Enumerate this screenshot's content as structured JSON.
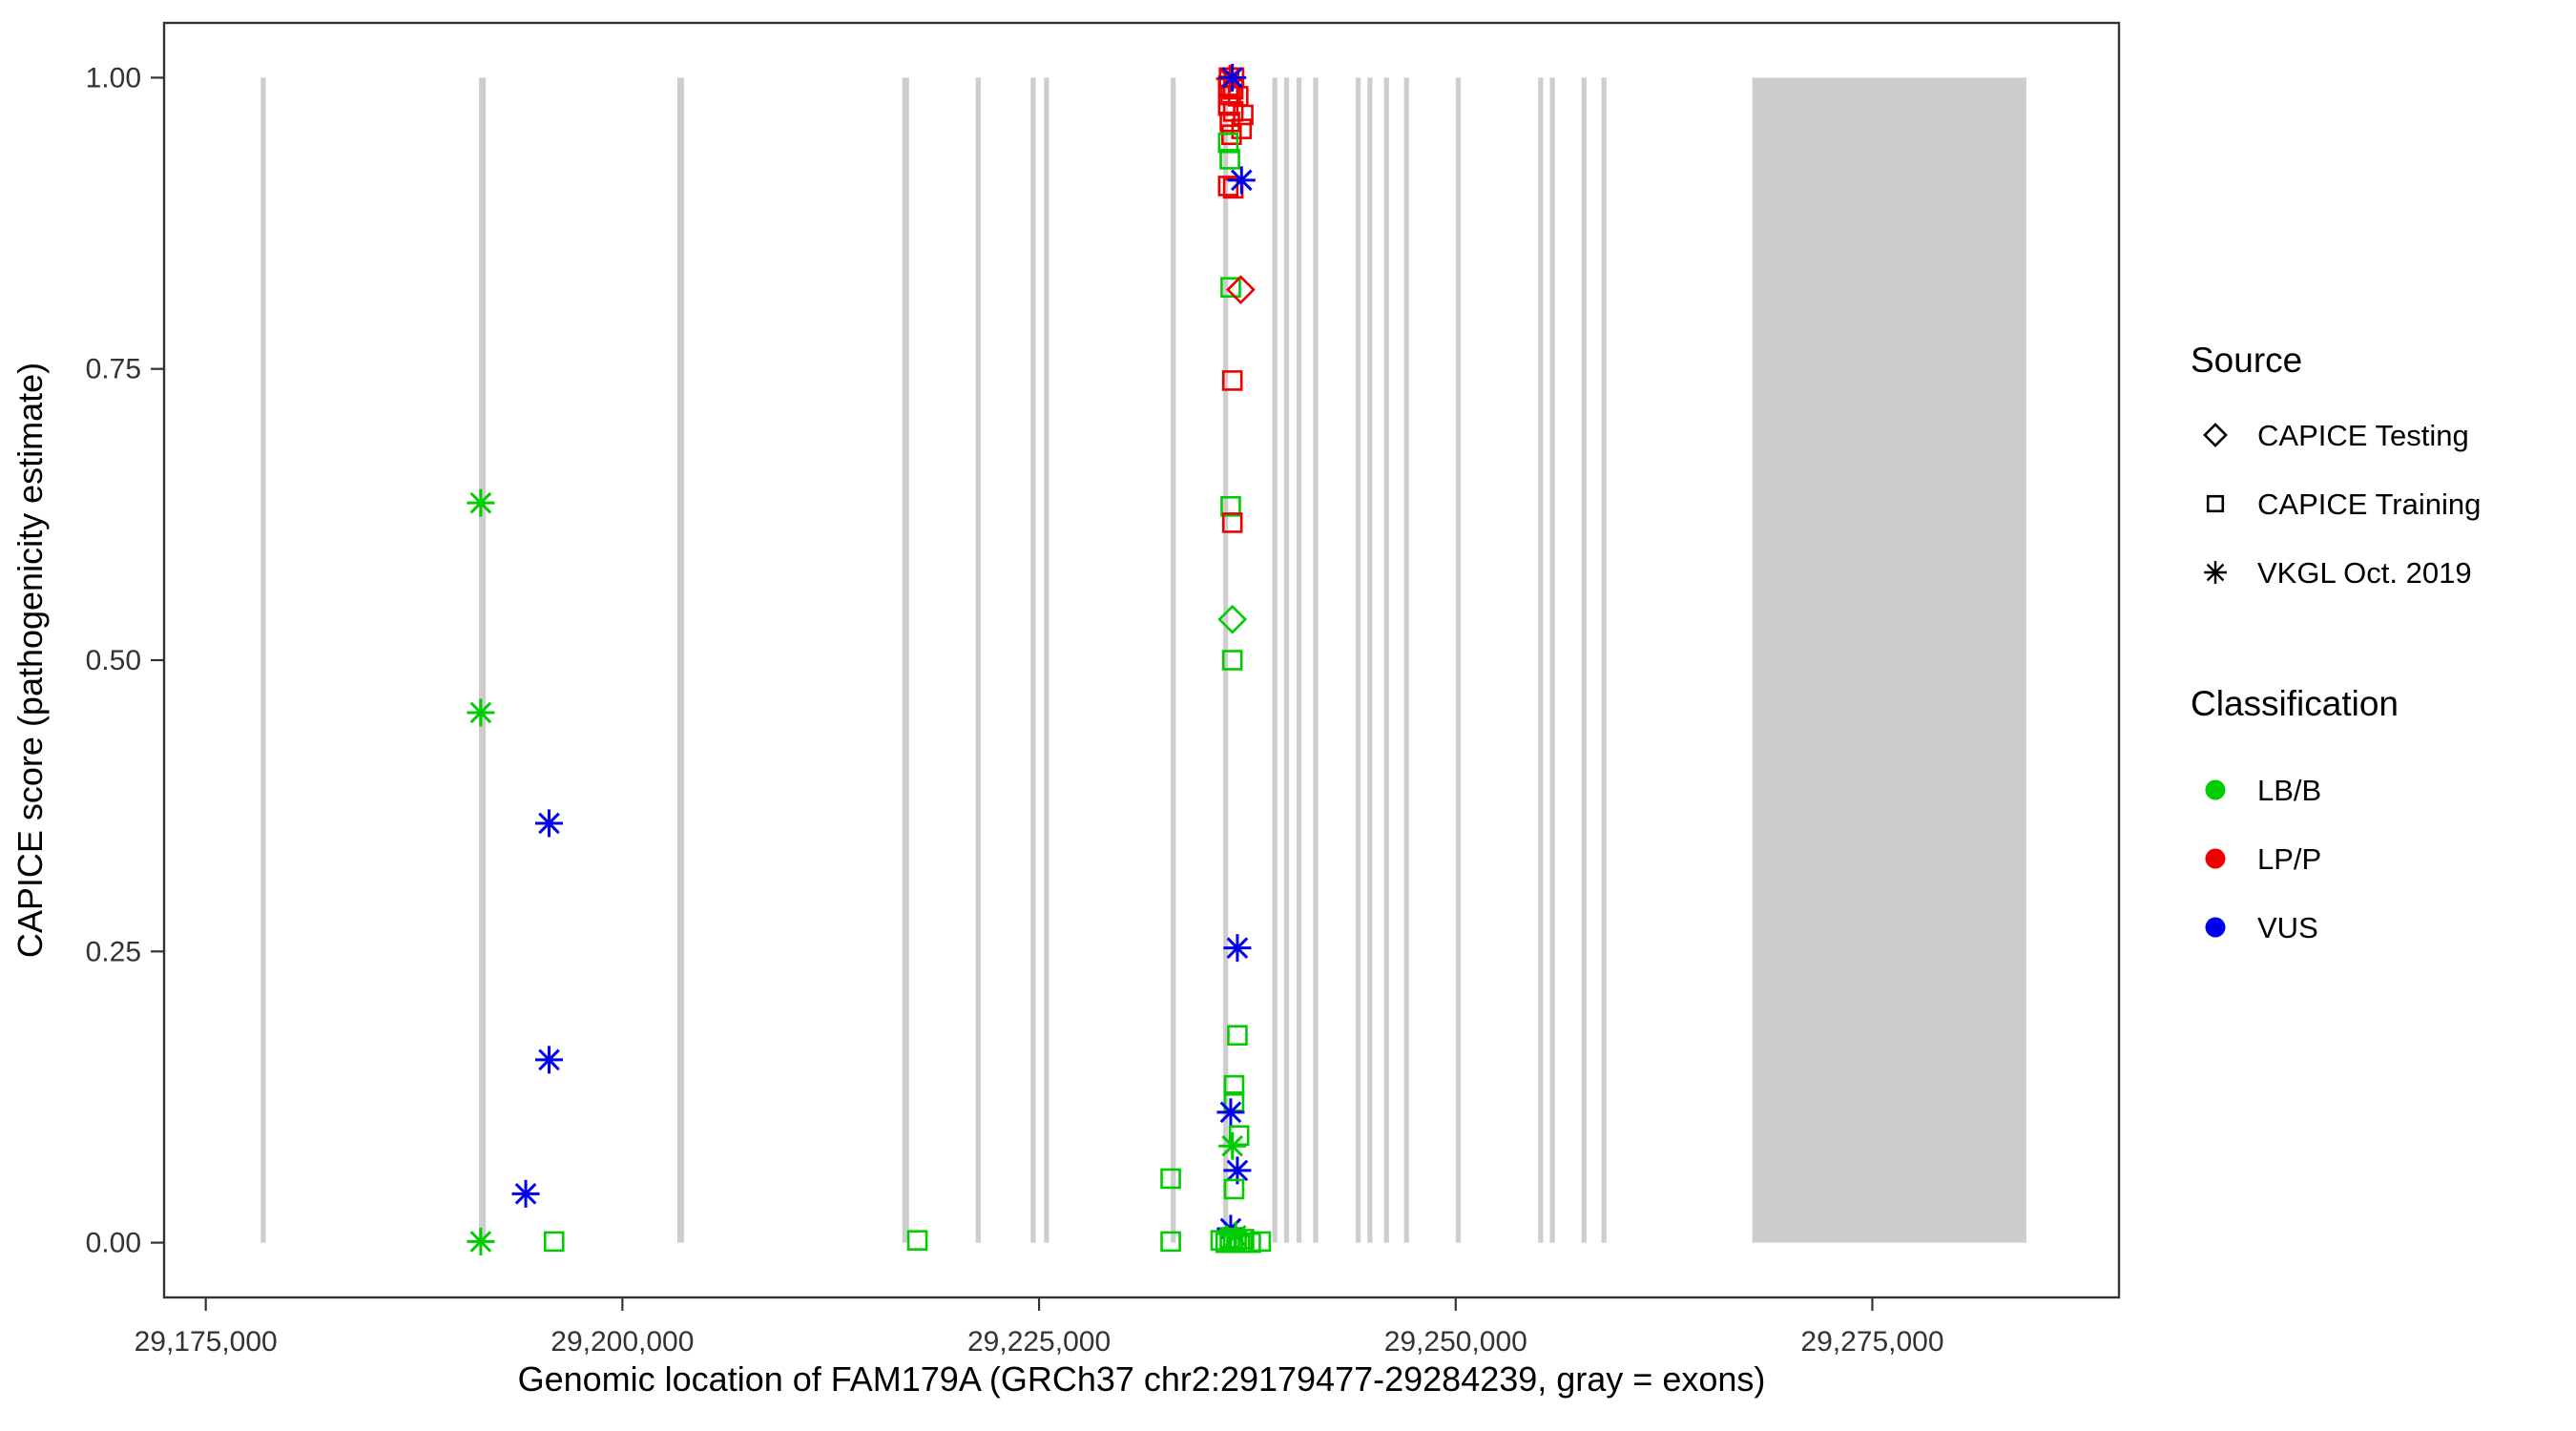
{
  "chart_data": {
    "type": "scatter",
    "title": "",
    "xlabel": "Genomic location of FAM179A (GRCh37 chr2:29179477-29284239, gray = exons)",
    "ylabel": "CAPICE score (pathogenicity estimate)",
    "xlim": [
      29172500,
      29289800
    ],
    "ylim": [
      -0.047,
      1.047
    ],
    "x_ticks": [
      {
        "value": 29175000,
        "label": "29,175,000"
      },
      {
        "value": 29200000,
        "label": "29,200,000"
      },
      {
        "value": 29225000,
        "label": "29,225,000"
      },
      {
        "value": 29250000,
        "label": "29,250,000"
      },
      {
        "value": 29275000,
        "label": "29,275,000"
      }
    ],
    "y_ticks": [
      {
        "value": 0.0,
        "label": "0.00"
      },
      {
        "value": 0.25,
        "label": "0.25"
      },
      {
        "value": 0.5,
        "label": "0.50"
      },
      {
        "value": 0.75,
        "label": "0.75"
      },
      {
        "value": 1.0,
        "label": "1.00"
      }
    ],
    "grid": false,
    "exon_color": "#cdcdcd",
    "exons": [
      [
        29178300,
        29178600
      ],
      [
        29191400,
        29191800
      ],
      [
        29203300,
        29203700
      ],
      [
        29216800,
        29217200
      ],
      [
        29221200,
        29221500
      ],
      [
        29224500,
        29224800
      ],
      [
        29225300,
        29225600
      ],
      [
        29232900,
        29233200
      ],
      [
        29236050,
        29236350
      ],
      [
        29239000,
        29239300
      ],
      [
        29239700,
        29240000
      ],
      [
        29240450,
        29240750
      ],
      [
        29241450,
        29241750
      ],
      [
        29244000,
        29244300
      ],
      [
        29244700,
        29245000
      ],
      [
        29245700,
        29246000
      ],
      [
        29246900,
        29247200
      ],
      [
        29250000,
        29250300
      ],
      [
        29254950,
        29255250
      ],
      [
        29255650,
        29255950
      ],
      [
        29257550,
        29257850
      ],
      [
        29258750,
        29259050
      ],
      [
        29267800,
        29284239
      ]
    ],
    "source_shapes": {
      "testing": "diamond",
      "training": "square",
      "vkgl": "asterisk"
    },
    "classification_colors": {
      "LB/B": "#00cc00",
      "LP/P": "#ee0000",
      "VUS": "#0000ee"
    },
    "legend": {
      "source_title": "Source",
      "source_items": [
        {
          "label": "CAPICE Testing",
          "shape": "diamond"
        },
        {
          "label": "CAPICE Training",
          "shape": "square"
        },
        {
          "label": "VKGL Oct. 2019",
          "shape": "asterisk"
        }
      ],
      "classification_title": "Classification",
      "classification_items": [
        {
          "label": "LB/B",
          "color": "#00cc00"
        },
        {
          "label": "LP/P",
          "color": "#ee0000"
        },
        {
          "label": "VUS",
          "color": "#0000ee"
        }
      ]
    },
    "points": [
      {
        "x": 29191500,
        "y": 0.635,
        "source": "vkgl",
        "class": "LB/B"
      },
      {
        "x": 29191500,
        "y": 0.455,
        "source": "vkgl",
        "class": "LB/B"
      },
      {
        "x": 29195600,
        "y": 0.36,
        "source": "vkgl",
        "class": "VUS"
      },
      {
        "x": 29195600,
        "y": 0.157,
        "source": "vkgl",
        "class": "VUS"
      },
      {
        "x": 29194200,
        "y": 0.042,
        "source": "vkgl",
        "class": "VUS"
      },
      {
        "x": 29191500,
        "y": 0.001,
        "source": "vkgl",
        "class": "LB/B"
      },
      {
        "x": 29195900,
        "y": 0.001,
        "source": "training",
        "class": "LB/B"
      },
      {
        "x": 29217700,
        "y": 0.002,
        "source": "training",
        "class": "LB/B"
      },
      {
        "x": 29232900,
        "y": 0.055,
        "source": "training",
        "class": "LB/B"
      },
      {
        "x": 29232900,
        "y": 0.001,
        "source": "training",
        "class": "LB/B"
      },
      {
        "x": 29236500,
        "y": 0.82,
        "source": "training",
        "class": "LB/B"
      },
      {
        "x": 29237100,
        "y": 0.818,
        "source": "testing",
        "class": "LP/P"
      },
      {
        "x": 29236600,
        "y": 0.74,
        "source": "training",
        "class": "LP/P"
      },
      {
        "x": 29236500,
        "y": 0.632,
        "source": "training",
        "class": "LB/B"
      },
      {
        "x": 29236600,
        "y": 0.618,
        "source": "training",
        "class": "LP/P"
      },
      {
        "x": 29236600,
        "y": 0.535,
        "source": "testing",
        "class": "LB/B"
      },
      {
        "x": 29236600,
        "y": 0.5,
        "source": "training",
        "class": "LB/B"
      },
      {
        "x": 29236900,
        "y": 0.253,
        "source": "vkgl",
        "class": "VUS"
      },
      {
        "x": 29236900,
        "y": 0.178,
        "source": "training",
        "class": "LB/B"
      },
      {
        "x": 29236700,
        "y": 0.135,
        "source": "training",
        "class": "LB/B"
      },
      {
        "x": 29236700,
        "y": 0.121,
        "source": "training",
        "class": "LB/B"
      },
      {
        "x": 29236500,
        "y": 0.112,
        "source": "vkgl",
        "class": "VUS"
      },
      {
        "x": 29237000,
        "y": 0.092,
        "source": "training",
        "class": "LB/B"
      },
      {
        "x": 29236600,
        "y": 0.083,
        "source": "vkgl",
        "class": "LB/B"
      },
      {
        "x": 29236900,
        "y": 0.062,
        "source": "vkgl",
        "class": "VUS"
      },
      {
        "x": 29236700,
        "y": 0.046,
        "source": "training",
        "class": "LB/B"
      },
      {
        "x": 29236500,
        "y": 0.012,
        "source": "vkgl",
        "class": "VUS"
      },
      {
        "x": 29236800,
        "y": 0.006,
        "source": "vkgl",
        "class": "LB/B"
      },
      {
        "x": 29235900,
        "y": 0.002,
        "source": "training",
        "class": "LB/B"
      },
      {
        "x": 29236200,
        "y": 0.0,
        "source": "training",
        "class": "LB/B"
      },
      {
        "x": 29236450,
        "y": 0.004,
        "source": "training",
        "class": "LB/B"
      },
      {
        "x": 29236650,
        "y": 0.0,
        "source": "training",
        "class": "LB/B"
      },
      {
        "x": 29236850,
        "y": 0.002,
        "source": "training",
        "class": "LB/B"
      },
      {
        "x": 29237050,
        "y": 0.0,
        "source": "training",
        "class": "LB/B"
      },
      {
        "x": 29237300,
        "y": 0.003,
        "source": "training",
        "class": "LB/B"
      },
      {
        "x": 29237700,
        "y": 0.0,
        "source": "training",
        "class": "LB/B"
      },
      {
        "x": 29238300,
        "y": 0.001,
        "source": "training",
        "class": "LB/B"
      },
      {
        "x": 29236400,
        "y": 1.0,
        "source": "training",
        "class": "LP/P"
      },
      {
        "x": 29236700,
        "y": 1.0,
        "source": "training",
        "class": "LP/P"
      },
      {
        "x": 29236350,
        "y": 0.993,
        "source": "training",
        "class": "LP/P"
      },
      {
        "x": 29236650,
        "y": 0.99,
        "source": "training",
        "class": "LP/P"
      },
      {
        "x": 29236500,
        "y": 0.985,
        "source": "training",
        "class": "LP/P"
      },
      {
        "x": 29236950,
        "y": 0.984,
        "source": "training",
        "class": "LP/P"
      },
      {
        "x": 29236350,
        "y": 0.976,
        "source": "training",
        "class": "LP/P"
      },
      {
        "x": 29236650,
        "y": 0.971,
        "source": "training",
        "class": "LP/P"
      },
      {
        "x": 29237250,
        "y": 0.968,
        "source": "training",
        "class": "LP/P"
      },
      {
        "x": 29236450,
        "y": 0.962,
        "source": "training",
        "class": "LP/P"
      },
      {
        "x": 29237150,
        "y": 0.956,
        "source": "training",
        "class": "LP/P"
      },
      {
        "x": 29236550,
        "y": 0.951,
        "source": "training",
        "class": "LP/P"
      },
      {
        "x": 29236450,
        "y": 0.999,
        "source": "vkgl",
        "class": "LP/P"
      },
      {
        "x": 29236600,
        "y": 1.0,
        "source": "vkgl",
        "class": "VUS"
      },
      {
        "x": 29236350,
        "y": 0.944,
        "source": "training",
        "class": "LB/B"
      },
      {
        "x": 29236450,
        "y": 0.93,
        "source": "training",
        "class": "LB/B"
      },
      {
        "x": 29236350,
        "y": 0.907,
        "source": "training",
        "class": "LP/P"
      },
      {
        "x": 29236650,
        "y": 0.905,
        "source": "training",
        "class": "LP/P"
      },
      {
        "x": 29237150,
        "y": 0.912,
        "source": "vkgl",
        "class": "VUS"
      }
    ]
  }
}
